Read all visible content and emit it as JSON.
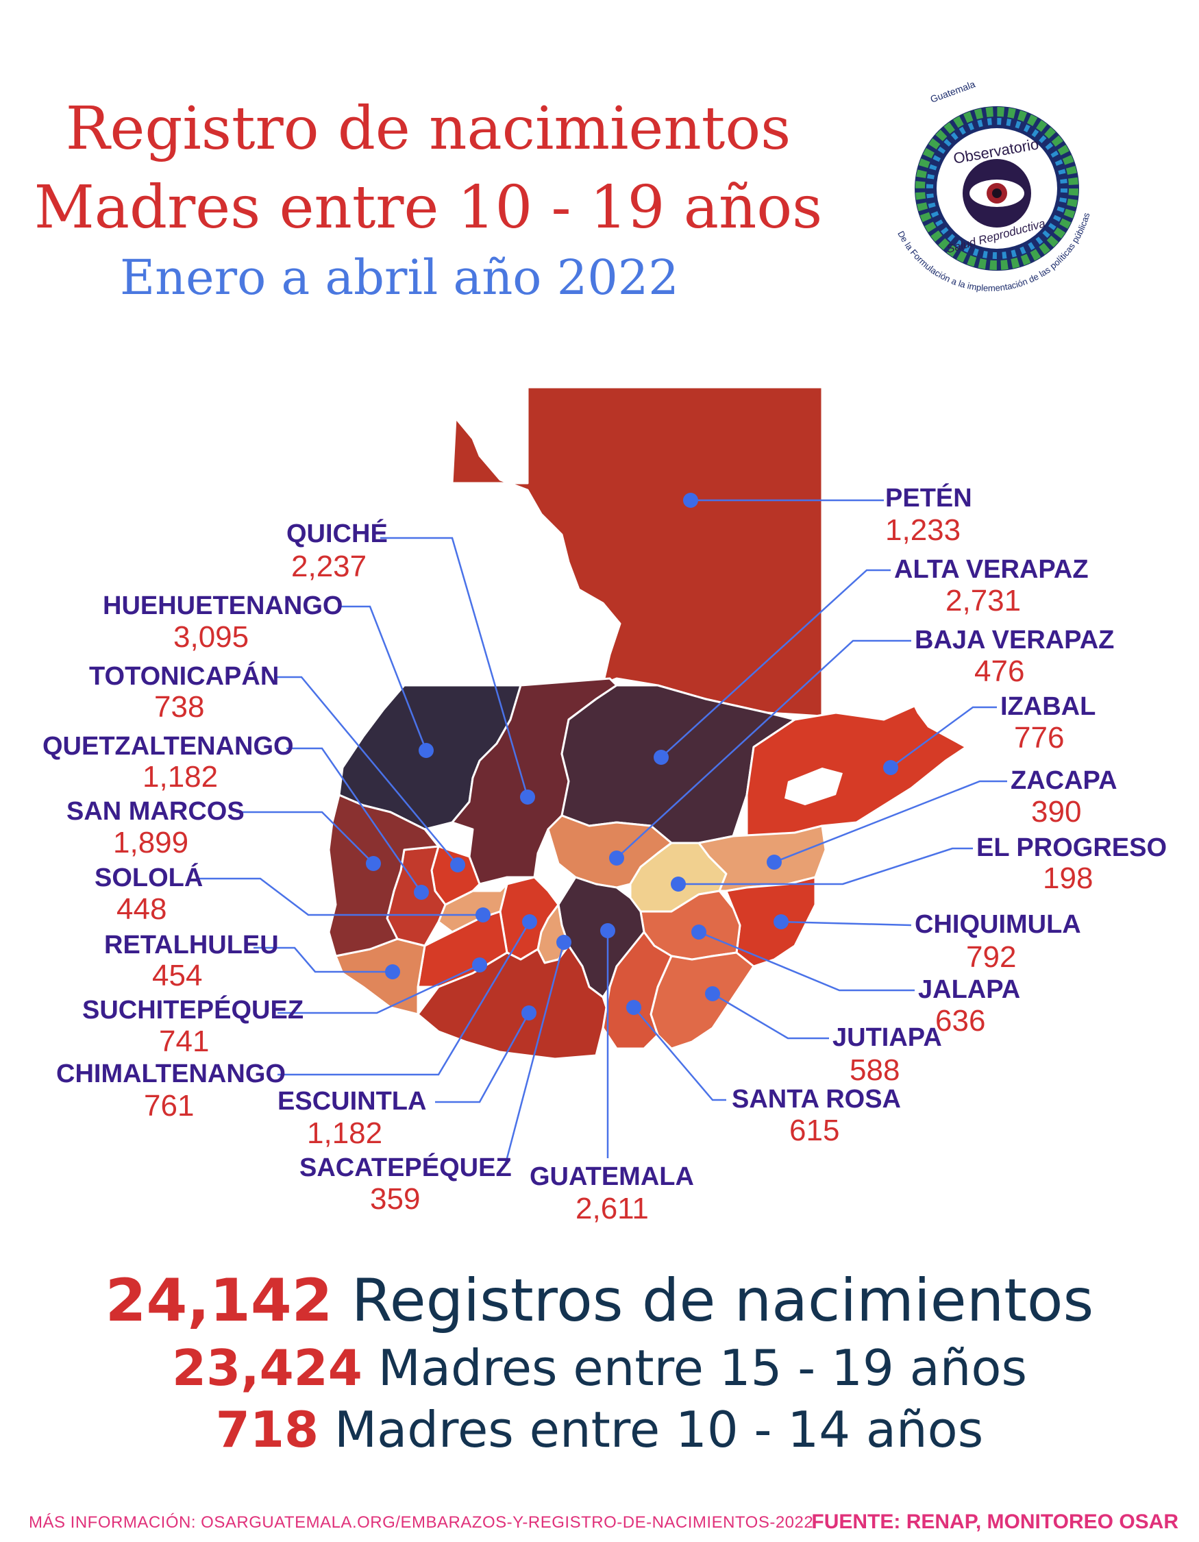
{
  "header": {
    "title_line1": "Registro de nacimientos",
    "title_line2": "Madres entre 10 - 19 años",
    "subtitle": "Enero a abril año 2022"
  },
  "logo": {
    "top_text": "Guatemala",
    "ring_text_1": "Observatorio",
    "ring_text_2": "Salud Reproductiva",
    "arc_text": "De la Formulación a la implementación de las políticas públicas"
  },
  "colors": {
    "accent_red": "#d32f2f",
    "label_purple": "#3a1e8c",
    "dot_blue": "#3d6be8",
    "dark_navy": "#143350"
  },
  "departments": [
    {
      "name": "PETÉN",
      "value": "1,233"
    },
    {
      "name": "ALTA VERAPAZ",
      "value": "2,731"
    },
    {
      "name": "BAJA VERAPAZ",
      "value": "476"
    },
    {
      "name": "IZABAL",
      "value": "776"
    },
    {
      "name": "ZACAPA",
      "value": "390"
    },
    {
      "name": "EL PROGRESO",
      "value": "198"
    },
    {
      "name": "CHIQUIMULA",
      "value": "792"
    },
    {
      "name": "JALAPA",
      "value": "636"
    },
    {
      "name": "JUTIAPA",
      "value": "588"
    },
    {
      "name": "SANTA ROSA",
      "value": "615"
    },
    {
      "name": "GUATEMALA",
      "value": "2,611"
    },
    {
      "name": "SACATEPÉQUEZ",
      "value": "359"
    },
    {
      "name": "ESCUINTLA",
      "value": "1,182"
    },
    {
      "name": "CHIMALTENANGO",
      "value": "761"
    },
    {
      "name": "SUCHITEPÉQUEZ",
      "value": "741"
    },
    {
      "name": "RETALHULEU",
      "value": "454"
    },
    {
      "name": "SOLOLÁ",
      "value": "448"
    },
    {
      "name": "SAN MARCOS",
      "value": "1,899"
    },
    {
      "name": "QUETZALTENANGO",
      "value": "1,182"
    },
    {
      "name": "TOTONICAPÁN",
      "value": "738"
    },
    {
      "name": "HUEHUETENANGO",
      "value": "3,095"
    },
    {
      "name": "QUICHÉ",
      "value": "2,237"
    }
  ],
  "totals": {
    "total_num": "24,142",
    "total_label": "Registros de nacimientos",
    "older_num": "23,424",
    "older_label": "Madres entre 15 - 19 años",
    "younger_num": "718",
    "younger_label": "Madres entre 10 - 14 años"
  },
  "footer": {
    "more_info": "MÁS INFORMACIÓN: OSARGUATEMALA.ORG/EMBARAZOS-Y-REGISTRO-DE-NACIMIENTOS-2022",
    "source": "FUENTE: RENAP, MONITOREO OSAR"
  }
}
